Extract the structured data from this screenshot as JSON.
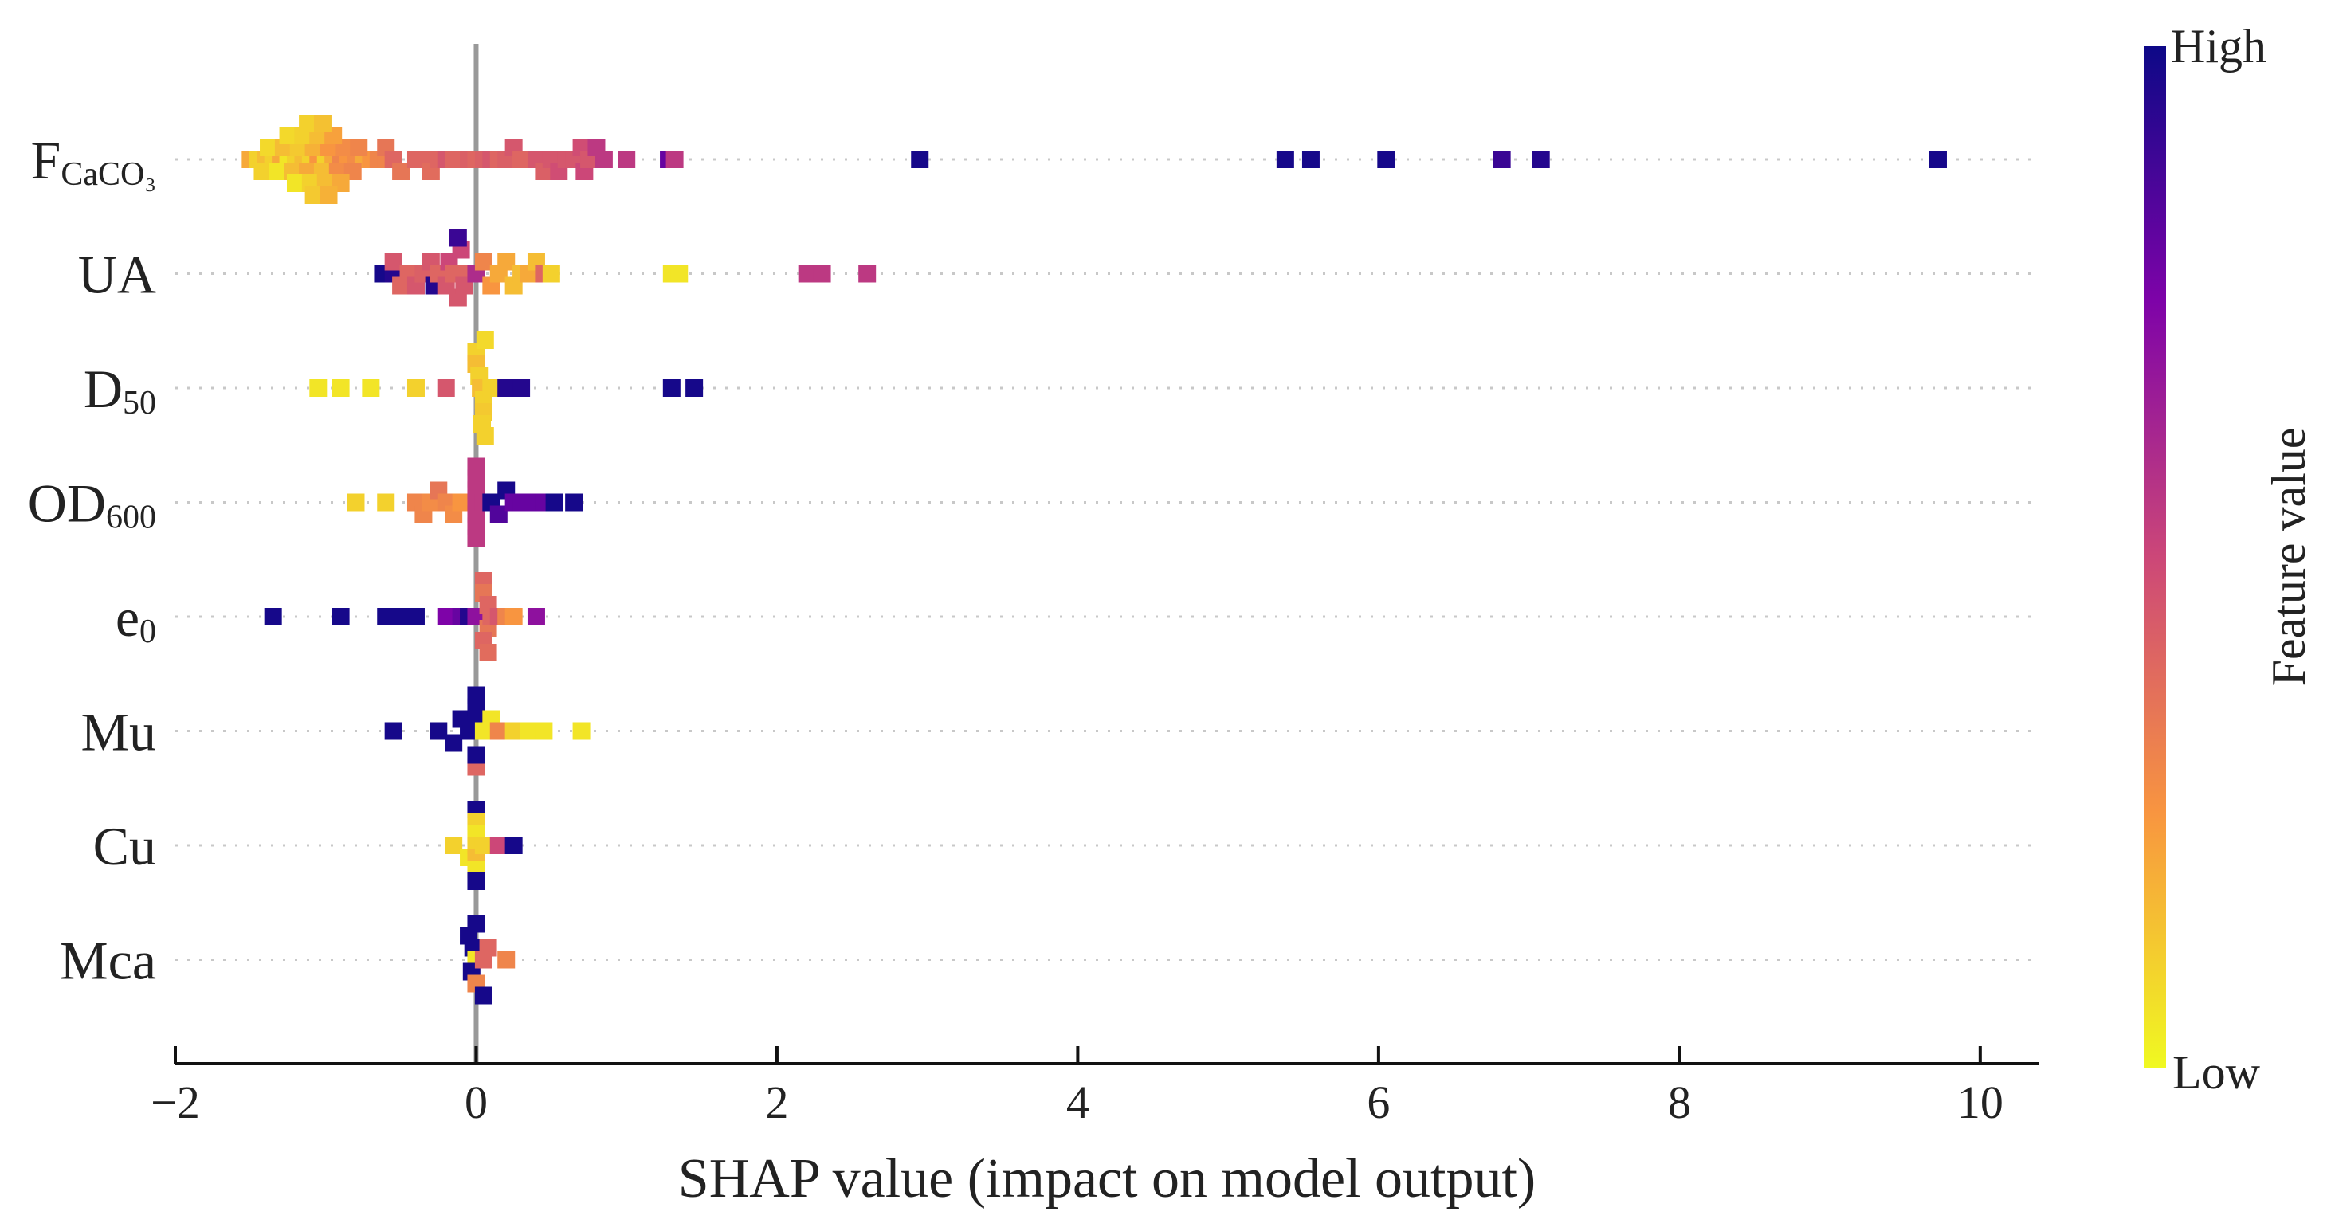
{
  "chart_data": {
    "type": "scatter",
    "subtype": "shap-beeswarm",
    "xlabel": "SHAP value (impact on model output)",
    "xlim": [
      -2,
      10.25
    ],
    "xticks": [
      -2,
      0,
      2,
      4,
      6,
      8,
      10
    ],
    "xtick_labels": [
      "−2",
      "0",
      "2",
      "4",
      "6",
      "8",
      "10"
    ],
    "colorbar": {
      "label": "Feature value",
      "high_label": "High",
      "low_label": "Low",
      "stops": [
        "#0d0887",
        "#7e03a8",
        "#cc4778",
        "#f89540",
        "#f0f921"
      ]
    },
    "features": [
      {
        "name": "F",
        "sub": "CaCO₃",
        "points": [
          [
            -1.5,
            0.8,
            0
          ],
          [
            -1.45,
            0.9,
            0
          ],
          [
            -1.4,
            0.85,
            0
          ],
          [
            -1.35,
            0.9,
            0
          ],
          [
            -1.3,
            0.8,
            0
          ],
          [
            -1.25,
            0.95,
            0
          ],
          [
            -1.2,
            0.9,
            0
          ],
          [
            -1.15,
            0.85,
            0
          ],
          [
            -1.1,
            0.9,
            0
          ],
          [
            -1.05,
            0.75,
            0
          ],
          [
            -1.0,
            0.9,
            0
          ],
          [
            -0.95,
            0.8,
            0
          ],
          [
            -0.9,
            0.7,
            0
          ],
          [
            -0.85,
            0.75,
            0
          ],
          [
            -0.8,
            0.72,
            0
          ],
          [
            -0.75,
            0.8,
            0
          ],
          [
            -0.7,
            0.75,
            0
          ],
          [
            -0.65,
            0.7,
            0
          ],
          [
            -0.6,
            0.7,
            0
          ],
          [
            -1.38,
            0.92,
            -1
          ],
          [
            -1.28,
            0.85,
            -1
          ],
          [
            -1.18,
            0.88,
            -1
          ],
          [
            -1.08,
            0.82,
            -1
          ],
          [
            -0.98,
            0.75,
            -1
          ],
          [
            -0.88,
            0.72,
            -1
          ],
          [
            -0.78,
            0.7,
            -1
          ],
          [
            -1.42,
            0.9,
            1
          ],
          [
            -1.32,
            0.95,
            1
          ],
          [
            -1.22,
            0.85,
            1
          ],
          [
            -1.12,
            0.8,
            1
          ],
          [
            -1.02,
            0.85,
            1
          ],
          [
            -0.92,
            0.72,
            1
          ],
          [
            -0.82,
            0.7,
            1
          ],
          [
            -1.25,
            0.92,
            -2
          ],
          [
            -1.15,
            0.9,
            -2
          ],
          [
            -1.05,
            0.85,
            -2
          ],
          [
            -0.95,
            0.78,
            -2
          ],
          [
            -1.2,
            0.95,
            2
          ],
          [
            -1.1,
            0.9,
            2
          ],
          [
            -1.0,
            0.85,
            2
          ],
          [
            -0.9,
            0.8,
            2
          ],
          [
            -1.12,
            0.9,
            -3
          ],
          [
            -1.02,
            0.86,
            -3
          ],
          [
            -1.08,
            0.88,
            3
          ],
          [
            -0.98,
            0.82,
            3
          ],
          [
            -0.6,
            0.65,
            -1
          ],
          [
            -0.55,
            0.6,
            0
          ],
          [
            -0.5,
            0.65,
            1
          ],
          [
            -0.4,
            0.6,
            0
          ],
          [
            -0.35,
            0.6,
            0
          ],
          [
            -0.3,
            0.62,
            1
          ],
          [
            -0.25,
            0.6,
            0
          ],
          [
            -0.2,
            0.55,
            0
          ],
          [
            -0.15,
            0.6,
            0
          ],
          [
            -0.1,
            0.6,
            0
          ],
          [
            -0.05,
            0.58,
            0
          ],
          [
            0.0,
            0.6,
            0
          ],
          [
            0.05,
            0.58,
            0
          ],
          [
            0.1,
            0.55,
            0
          ],
          [
            0.15,
            0.6,
            0
          ],
          [
            0.2,
            0.58,
            0
          ],
          [
            0.25,
            0.55,
            -1
          ],
          [
            0.3,
            0.6,
            0
          ],
          [
            0.4,
            0.55,
            0
          ],
          [
            0.45,
            0.58,
            1
          ],
          [
            0.5,
            0.55,
            0
          ],
          [
            0.55,
            0.52,
            1
          ],
          [
            0.6,
            0.55,
            0
          ],
          [
            0.65,
            0.55,
            0
          ],
          [
            0.7,
            0.52,
            -1
          ],
          [
            0.72,
            0.5,
            1
          ],
          [
            0.75,
            0.55,
            0
          ],
          [
            0.8,
            0.45,
            -1
          ],
          [
            0.85,
            0.45,
            0
          ],
          [
            1.0,
            0.45,
            0
          ],
          [
            1.28,
            0.2,
            0
          ],
          [
            1.32,
            0.45,
            0
          ],
          [
            2.95,
            0.02,
            0
          ],
          [
            5.38,
            0.02,
            0
          ],
          [
            5.55,
            0.02,
            0
          ],
          [
            6.05,
            0.02,
            0
          ],
          [
            6.82,
            0.1,
            0
          ],
          [
            7.08,
            0.05,
            0
          ],
          [
            9.72,
            0.02,
            0
          ]
        ]
      },
      {
        "name": "UA",
        "sub": "",
        "points": [
          [
            -0.62,
            0.02,
            0
          ],
          [
            -0.55,
            0.05,
            0
          ],
          [
            -0.5,
            0.6,
            1
          ],
          [
            -0.55,
            0.55,
            -1
          ],
          [
            -0.45,
            0.6,
            0
          ],
          [
            -0.4,
            0.55,
            1
          ],
          [
            -0.35,
            0.58,
            0
          ],
          [
            -0.3,
            0.55,
            -1
          ],
          [
            -0.28,
            0.05,
            1
          ],
          [
            -0.25,
            0.6,
            0
          ],
          [
            -0.2,
            0.55,
            1
          ],
          [
            -0.18,
            0.5,
            -1
          ],
          [
            -0.15,
            0.6,
            0
          ],
          [
            -0.12,
            0.55,
            2
          ],
          [
            -0.1,
            0.5,
            -2
          ],
          [
            -0.05,
            0.6,
            0
          ],
          [
            -0.12,
            0.1,
            -3
          ],
          [
            -0.08,
            0.55,
            1
          ],
          [
            0.0,
            0.4,
            0
          ],
          [
            0.05,
            0.7,
            -1
          ],
          [
            0.1,
            0.75,
            1
          ],
          [
            0.15,
            0.8,
            0
          ],
          [
            0.2,
            0.8,
            -1
          ],
          [
            0.25,
            0.85,
            1
          ],
          [
            0.3,
            0.85,
            0
          ],
          [
            0.35,
            0.8,
            0
          ],
          [
            0.4,
            0.85,
            -1
          ],
          [
            0.45,
            0.6,
            0
          ],
          [
            0.5,
            0.9,
            0
          ],
          [
            1.3,
            0.95,
            0
          ],
          [
            1.35,
            0.95,
            0
          ],
          [
            2.2,
            0.45,
            0
          ],
          [
            2.3,
            0.45,
            0
          ],
          [
            2.6,
            0.45,
            0
          ]
        ]
      },
      {
        "name": "D",
        "sub": "50",
        "points": [
          [
            -1.05,
            0.95,
            0
          ],
          [
            -0.9,
            0.95,
            0
          ],
          [
            -0.7,
            0.95,
            0
          ],
          [
            -0.4,
            0.9,
            0
          ],
          [
            -0.2,
            0.55,
            0
          ],
          [
            0.0,
            0.9,
            -3
          ],
          [
            0.0,
            0.85,
            -2
          ],
          [
            0.02,
            0.9,
            -1
          ],
          [
            0.03,
            0.85,
            0
          ],
          [
            0.05,
            0.9,
            1
          ],
          [
            0.05,
            0.88,
            2
          ],
          [
            0.04,
            0.9,
            3
          ],
          [
            0.06,
            0.92,
            -4
          ],
          [
            0.06,
            0.9,
            4
          ],
          [
            0.1,
            0.9,
            0
          ],
          [
            0.2,
            0.05,
            0
          ],
          [
            0.3,
            0.05,
            0
          ],
          [
            1.3,
            0.02,
            0
          ],
          [
            1.45,
            0.02,
            0
          ]
        ]
      },
      {
        "name": "OD",
        "sub": "600",
        "points": [
          [
            -0.8,
            0.9,
            0
          ],
          [
            -0.6,
            0.9,
            0
          ],
          [
            -0.4,
            0.7,
            0
          ],
          [
            -0.35,
            0.7,
            1
          ],
          [
            -0.3,
            0.72,
            0
          ],
          [
            -0.25,
            0.65,
            -1
          ],
          [
            -0.2,
            0.7,
            0
          ],
          [
            -0.15,
            0.72,
            1
          ],
          [
            -0.1,
            0.75,
            0
          ],
          [
            0.0,
            0.45,
            -3
          ],
          [
            0.0,
            0.45,
            -2
          ],
          [
            0.0,
            0.45,
            -1
          ],
          [
            0.0,
            0.45,
            0
          ],
          [
            0.0,
            0.45,
            1
          ],
          [
            0.0,
            0.45,
            2
          ],
          [
            0.0,
            0.45,
            3
          ],
          [
            0.05,
            0.45,
            0
          ],
          [
            0.1,
            0.02,
            0
          ],
          [
            0.15,
            0.15,
            1
          ],
          [
            0.2,
            0.02,
            -1
          ],
          [
            0.25,
            0.2,
            0
          ],
          [
            0.3,
            0.2,
            0
          ],
          [
            0.35,
            0.2,
            0
          ],
          [
            0.4,
            0.2,
            0
          ],
          [
            0.45,
            0.2,
            0
          ],
          [
            0.52,
            0.02,
            0
          ],
          [
            0.65,
            0.02,
            0
          ]
        ]
      },
      {
        "name": "e",
        "sub": "0",
        "points": [
          [
            -1.35,
            0.02,
            0
          ],
          [
            -0.9,
            0.02,
            0
          ],
          [
            -0.6,
            0.02,
            0
          ],
          [
            -0.5,
            0.02,
            0
          ],
          [
            -0.45,
            0.02,
            0
          ],
          [
            -0.4,
            0.02,
            0
          ],
          [
            -0.2,
            0.25,
            0
          ],
          [
            -0.1,
            0.2,
            0
          ],
          [
            -0.05,
            0.05,
            0
          ],
          [
            0.0,
            0.3,
            0
          ],
          [
            0.05,
            0.6,
            -3
          ],
          [
            0.05,
            0.65,
            -2
          ],
          [
            0.08,
            0.6,
            -1
          ],
          [
            0.08,
            0.65,
            1
          ],
          [
            0.05,
            0.6,
            2
          ],
          [
            0.08,
            0.62,
            3
          ],
          [
            0.1,
            0.6,
            0
          ],
          [
            0.15,
            0.55,
            0
          ],
          [
            0.2,
            0.7,
            0
          ],
          [
            0.25,
            0.75,
            0
          ],
          [
            0.4,
            0.3,
            0
          ]
        ]
      },
      {
        "name": "Mu",
        "sub": "",
        "points": [
          [
            -0.55,
            0.02,
            0
          ],
          [
            -0.25,
            0.02,
            0
          ],
          [
            -0.15,
            0.02,
            1
          ],
          [
            -0.1,
            0.02,
            -1
          ],
          [
            -0.05,
            0.02,
            0
          ],
          [
            0.0,
            0.02,
            -3
          ],
          [
            0.0,
            0.02,
            -2
          ],
          [
            0.0,
            0.02,
            -1
          ],
          [
            0.0,
            0.6,
            3
          ],
          [
            0.0,
            0.02,
            2
          ],
          [
            0.05,
            0.95,
            0
          ],
          [
            0.1,
            0.95,
            -1
          ],
          [
            0.15,
            0.7,
            0
          ],
          [
            0.25,
            0.9,
            0
          ],
          [
            0.35,
            0.95,
            0
          ],
          [
            0.45,
            0.95,
            0
          ],
          [
            0.7,
            0.95,
            0
          ]
        ]
      },
      {
        "name": "Cu",
        "sub": "",
        "points": [
          [
            -0.15,
            0.9,
            0
          ],
          [
            -0.05,
            0.95,
            1
          ],
          [
            0.0,
            0.02,
            -3
          ],
          [
            0.0,
            0.9,
            -2
          ],
          [
            0.0,
            0.95,
            -1
          ],
          [
            0.0,
            0.9,
            0
          ],
          [
            0.0,
            0.85,
            1
          ],
          [
            0.0,
            0.95,
            2
          ],
          [
            0.0,
            0.02,
            3
          ],
          [
            0.05,
            0.9,
            0
          ],
          [
            0.15,
            0.5,
            0
          ],
          [
            0.25,
            0.02,
            0
          ]
        ]
      },
      {
        "name": "Mca",
        "sub": "",
        "points": [
          [
            -0.05,
            0.02,
            -2
          ],
          [
            -0.02,
            0.02,
            -1
          ],
          [
            0.0,
            0.95,
            0
          ],
          [
            -0.03,
            0.02,
            1
          ],
          [
            0.0,
            0.7,
            2
          ],
          [
            0.0,
            0.02,
            -3
          ],
          [
            0.05,
            0.02,
            3
          ],
          [
            0.05,
            0.6,
            0
          ],
          [
            0.08,
            0.6,
            -1
          ],
          [
            0.2,
            0.7,
            0
          ]
        ]
      }
    ]
  }
}
